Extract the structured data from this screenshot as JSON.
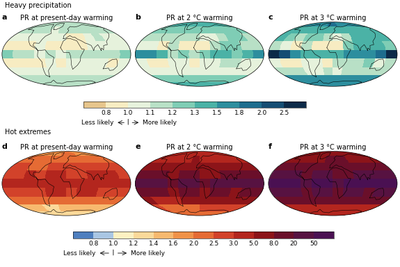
{
  "chart_data": [
    {
      "type": "heatmap",
      "title": "Heavy precipitation",
      "tick_labels": false,
      "x": [
        -165,
        -135,
        -105,
        -75,
        -45,
        -15,
        15,
        45,
        75,
        105,
        135,
        165
      ],
      "y": [
        80,
        60,
        40,
        20,
        0,
        -20,
        -40,
        -60,
        -80
      ],
      "colorbar": {
        "levels": [
          0.8,
          1.0,
          1.1,
          1.2,
          1.3,
          1.5,
          1.8,
          2.0,
          2.5
        ],
        "colors": [
          "#e6c58c",
          "#f7ecc2",
          "#e6f2dc",
          "#b8e0c6",
          "#7fcdb5",
          "#4bb2a6",
          "#2d8e9e",
          "#1e6d8e",
          "#154d73",
          "#0c2a48"
        ],
        "ticks": [
          0.8,
          {
            "value": 1.0,
            "label": "1.0"
          },
          1.1,
          1.2,
          1.3,
          1.5,
          1.8,
          {
            "value": 2.0,
            "label": "2.0"
          },
          2.5
        ]
      },
      "annotations": [
        "Less likely",
        "More likely"
      ],
      "panels": [
        {
          "label": "a",
          "title": "PR at present-day warming",
          "values": [
            [
              1.15,
              1.15,
              1.1,
              1.1,
              1.1,
              1.1,
              1.1,
              1.15,
              1.15,
              1.15,
              1.15,
              1.15
            ],
            [
              1.1,
              1.1,
              1.1,
              1.1,
              1.05,
              1.1,
              1.1,
              1.1,
              1.1,
              1.1,
              1.1,
              1.1
            ],
            [
              1.05,
              1.05,
              1.0,
              1.05,
              1.05,
              1.0,
              0.95,
              0.95,
              1.05,
              1.1,
              1.05,
              1.05
            ],
            [
              0.95,
              0.95,
              0.95,
              1.05,
              0.9,
              0.9,
              0.9,
              0.95,
              1.05,
              1.05,
              1.05,
              1.0
            ],
            [
              1.2,
              1.15,
              1.1,
              1.05,
              1.1,
              1.05,
              1.1,
              1.1,
              1.1,
              1.1,
              1.15,
              1.2
            ],
            [
              0.95,
              0.95,
              0.9,
              0.95,
              1.0,
              0.9,
              1.0,
              1.0,
              1.0,
              1.05,
              0.95,
              1.0
            ],
            [
              1.0,
              1.0,
              1.0,
              1.0,
              1.0,
              1.0,
              1.0,
              1.0,
              1.0,
              1.0,
              1.0,
              1.0
            ],
            [
              1.1,
              1.1,
              1.1,
              1.1,
              1.1,
              1.1,
              1.1,
              1.1,
              1.1,
              1.1,
              1.1,
              1.1
            ],
            [
              1.1,
              1.1,
              1.1,
              1.1,
              1.1,
              1.1,
              1.1,
              1.1,
              1.1,
              1.1,
              1.1,
              1.1
            ]
          ]
        },
        {
          "label": "b",
          "title": "PR at 2 °C warming",
          "values": [
            [
              1.35,
              1.35,
              1.3,
              1.3,
              1.35,
              1.4,
              1.4,
              1.35,
              1.35,
              1.35,
              1.35,
              1.35
            ],
            [
              1.25,
              1.25,
              1.2,
              1.2,
              1.2,
              1.25,
              1.25,
              1.25,
              1.25,
              1.25,
              1.25,
              1.25
            ],
            [
              1.15,
              1.15,
              1.1,
              1.1,
              1.15,
              1.1,
              1.0,
              1.05,
              1.15,
              1.2,
              1.2,
              1.15
            ],
            [
              1.05,
              1.0,
              0.95,
              1.1,
              0.95,
              0.95,
              0.95,
              1.1,
              1.2,
              1.2,
              1.15,
              1.1
            ],
            [
              1.6,
              1.5,
              1.3,
              1.15,
              1.2,
              1.15,
              1.2,
              1.3,
              1.3,
              1.25,
              1.4,
              1.6
            ],
            [
              1.0,
              0.95,
              0.9,
              1.0,
              1.05,
              0.95,
              1.05,
              1.05,
              1.1,
              1.15,
              1.0,
              1.05
            ],
            [
              1.05,
              1.05,
              1.05,
              1.0,
              1.0,
              1.05,
              1.0,
              1.05,
              1.05,
              1.05,
              1.05,
              1.05
            ],
            [
              1.25,
              1.25,
              1.25,
              1.25,
              1.25,
              1.25,
              1.25,
              1.25,
              1.25,
              1.25,
              1.25,
              1.25
            ],
            [
              1.3,
              1.3,
              1.3,
              1.3,
              1.3,
              1.3,
              1.3,
              1.3,
              1.3,
              1.3,
              1.3,
              1.3
            ]
          ]
        },
        {
          "label": "c",
          "title": "PR at 3 °C warming",
          "values": [
            [
              1.7,
              1.7,
              1.6,
              1.6,
              1.7,
              1.8,
              1.8,
              1.7,
              1.7,
              1.7,
              1.7,
              1.7
            ],
            [
              1.45,
              1.45,
              1.4,
              1.4,
              1.35,
              1.45,
              1.45,
              1.45,
              1.45,
              1.45,
              1.45,
              1.45
            ],
            [
              1.3,
              1.25,
              1.15,
              1.2,
              1.25,
              1.15,
              1.05,
              1.1,
              1.3,
              1.35,
              1.35,
              1.3
            ],
            [
              1.1,
              1.0,
              0.95,
              1.15,
              0.95,
              0.9,
              0.95,
              1.2,
              1.35,
              1.35,
              1.3,
              1.2
            ],
            [
              2.6,
              2.2,
              1.6,
              1.3,
              1.35,
              1.3,
              1.4,
              1.6,
              1.6,
              1.5,
              1.9,
              2.6
            ],
            [
              1.05,
              0.95,
              0.85,
              1.0,
              1.05,
              0.9,
              1.1,
              1.1,
              1.15,
              1.25,
              1.05,
              1.1
            ],
            [
              1.1,
              1.1,
              1.1,
              1.0,
              1.0,
              1.1,
              1.05,
              1.1,
              1.1,
              1.1,
              1.1,
              1.1
            ],
            [
              1.5,
              1.5,
              1.5,
              1.5,
              1.5,
              1.5,
              1.5,
              1.5,
              1.5,
              1.5,
              1.5,
              1.5
            ],
            [
              1.55,
              1.55,
              1.55,
              1.55,
              1.55,
              1.55,
              1.55,
              1.55,
              1.55,
              1.55,
              1.55,
              1.55
            ]
          ]
        }
      ]
    },
    {
      "type": "heatmap",
      "title": "Hot extremes",
      "tick_labels": false,
      "x": [
        -165,
        -135,
        -105,
        -75,
        -45,
        -15,
        15,
        45,
        75,
        105,
        135,
        165
      ],
      "y": [
        80,
        60,
        40,
        20,
        0,
        -20,
        -40,
        -60,
        -80
      ],
      "colorbar": {
        "levels": [
          0.8,
          1.0,
          1.2,
          1.4,
          1.6,
          2.0,
          2.5,
          3.0,
          5.0,
          8.0,
          20,
          50
        ],
        "colors": [
          "#4f7fbf",
          "#a9c6e3",
          "#fdf1c2",
          "#fbd99a",
          "#f7b96f",
          "#f09248",
          "#e56b34",
          "#d2422a",
          "#b3261e",
          "#8c1419",
          "#6a0f2a",
          "#571241",
          "#4a1052"
        ],
        "ticks": [
          0.8,
          {
            "value": 1.0,
            "label": "1.0"
          },
          1.2,
          1.4,
          1.6,
          {
            "value": 2.0,
            "label": "2.0"
          },
          2.5,
          {
            "value": 3.0,
            "label": "3.0"
          },
          {
            "value": 5.0,
            "label": "5.0"
          },
          {
            "value": 8.0,
            "label": "8.0"
          },
          20,
          50
        ]
      },
      "annotations": [
        "Less likely",
        "More likely"
      ],
      "panels": [
        {
          "label": "d",
          "title": "PR at present-day warming",
          "values": [
            [
              1.8,
              1.8,
              1.7,
              1.8,
              1.9,
              2.2,
              2.2,
              2.0,
              1.9,
              1.8,
              1.8,
              1.8
            ],
            [
              2.2,
              2.3,
              2.2,
              2.2,
              2.3,
              2.4,
              2.4,
              2.3,
              2.3,
              2.3,
              2.2,
              2.2
            ],
            [
              2.6,
              2.7,
              2.4,
              2.4,
              2.7,
              2.7,
              2.8,
              2.6,
              2.6,
              2.7,
              2.8,
              2.6
            ],
            [
              2.8,
              2.9,
              3.5,
              2.8,
              3.2,
              3.5,
              2.8,
              2.8,
              3.5,
              3.0,
              3.2,
              2.9
            ],
            [
              3.5,
              3.5,
              4.0,
              3.5,
              4.0,
              4.0,
              3.0,
              4.0,
              4.0,
              4.0,
              4.0,
              3.5
            ],
            [
              2.8,
              2.8,
              2.7,
              2.5,
              3.0,
              3.5,
              2.7,
              3.2,
              3.2,
              2.6,
              2.7,
              2.8
            ],
            [
              2.2,
              2.1,
              2.1,
              2.1,
              2.2,
              2.3,
              2.4,
              2.4,
              2.4,
              2.3,
              2.3,
              2.2
            ],
            [
              1.5,
              1.4,
              1.4,
              1.3,
              1.3,
              1.4,
              1.4,
              1.5,
              1.5,
              1.5,
              1.5,
              1.5
            ],
            [
              1.3,
              1.3,
              1.3,
              1.3,
              1.3,
              1.3,
              1.3,
              1.3,
              1.3,
              1.3,
              1.3,
              1.3
            ]
          ]
        },
        {
          "label": "e",
          "title": "PR at 2 °C warming",
          "values": [
            [
              3.5,
              3.5,
              3.2,
              3.5,
              3.8,
              4.5,
              4.5,
              4.0,
              3.8,
              3.5,
              3.5,
              3.5
            ],
            [
              4.5,
              4.5,
              4.2,
              4.2,
              4.5,
              5.0,
              4.8,
              4.5,
              4.5,
              4.5,
              4.5,
              4.5
            ],
            [
              6,
              6.5,
              5.5,
              5.5,
              6.5,
              6,
              6.5,
              6,
              6,
              6.5,
              7,
              6
            ],
            [
              10,
              12,
              15,
              7,
              12,
              15,
              7,
              7,
              14,
              9,
              12,
              10
            ],
            [
              25,
              25,
              30,
              18,
              25,
              30,
              12,
              25,
              30,
              25,
              30,
              25
            ],
            [
              10,
              10,
              9,
              7,
              12,
              15,
              7,
              12,
              14,
              7,
              9,
              10
            ],
            [
              5,
              4.5,
              4.5,
              4.5,
              5,
              5.5,
              5.5,
              5.5,
              5.5,
              5,
              5,
              5
            ],
            [
              2.6,
              2.4,
              2.4,
              2.3,
              2.3,
              2.4,
              2.5,
              2.6,
              2.6,
              2.6,
              2.6,
              2.6
            ],
            [
              2.2,
              2.2,
              2.2,
              2.2,
              2.2,
              2.2,
              2.2,
              2.2,
              2.2,
              2.2,
              2.2,
              2.2
            ]
          ]
        },
        {
          "label": "f",
          "title": "PR at 3 °C warming",
          "values": [
            [
              6,
              6,
              5.5,
              6,
              6.5,
              7,
              7,
              6.5,
              6.5,
              6,
              6,
              6
            ],
            [
              7.5,
              7.5,
              7,
              7,
              7.5,
              8.5,
              8.5,
              8,
              7.5,
              7.5,
              7.5,
              7.5
            ],
            [
              12,
              14,
              10,
              10,
              14,
              12,
              14,
              12,
              12,
              14,
              15,
              12
            ],
            [
              30,
              35,
              45,
              14,
              35,
              45,
              14,
              15,
              40,
              25,
              35,
              30
            ],
            [
              70,
              70,
              80,
              40,
              70,
              80,
              25,
              70,
              80,
              70,
              80,
              70
            ],
            [
              30,
              30,
              25,
              14,
              35,
              45,
              14,
              35,
              40,
              15,
              25,
              30
            ],
            [
              10,
              9,
              9,
              9,
              10,
              11,
              11,
              11,
              11,
              10,
              10,
              10
            ],
            [
              4,
              3.8,
              3.6,
              3.5,
              3.5,
              3.6,
              3.8,
              4,
              4,
              4,
              4,
              4
            ],
            [
              3.2,
              3.2,
              3.2,
              3.2,
              3.2,
              3.2,
              3.2,
              3.2,
              3.2,
              3.2,
              3.2,
              3.2
            ]
          ]
        }
      ]
    }
  ]
}
